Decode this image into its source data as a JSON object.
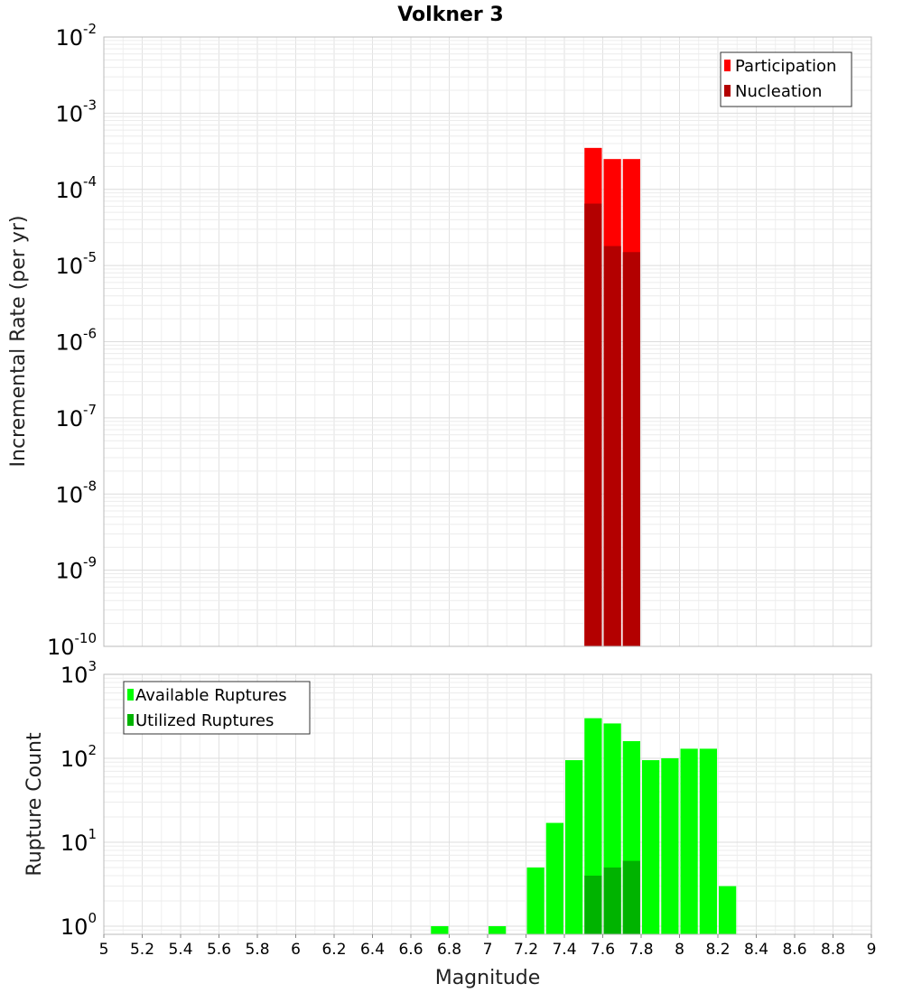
{
  "chart_data": [
    {
      "type": "bar",
      "title": "Volkner 3",
      "ylabel": "Incremental Rate (per yr)",
      "xlabel": "",
      "yscale": "log",
      "ylim": [
        1e-10,
        0.01
      ],
      "xlim": [
        5,
        9
      ],
      "bin_width": 0.1,
      "grid": true,
      "legend_position": "top-right",
      "y_tick_labels": [
        {
          "base": "10",
          "exp": "-2",
          "value": 0.01
        },
        {
          "base": "10",
          "exp": "-3",
          "value": 0.001
        },
        {
          "base": "10",
          "exp": "-4",
          "value": 0.0001
        },
        {
          "base": "10",
          "exp": "-5",
          "value": 1e-05
        },
        {
          "base": "10",
          "exp": "-6",
          "value": 1e-06
        },
        {
          "base": "10",
          "exp": "-7",
          "value": 1e-07
        },
        {
          "base": "10",
          "exp": "-8",
          "value": 1e-08
        },
        {
          "base": "10",
          "exp": "-9",
          "value": 1e-09
        },
        {
          "base": "10",
          "exp": "-10",
          "value": 1e-10
        }
      ],
      "series": [
        {
          "name": "Participation",
          "color": "#ff0000",
          "x": [
            7.55,
            7.65,
            7.75
          ],
          "values": [
            0.00035,
            0.00025,
            0.00025
          ]
        },
        {
          "name": "Nucleation",
          "color": "#b30000",
          "x": [
            7.55,
            7.65,
            7.75
          ],
          "values": [
            6.5e-05,
            1.8e-05,
            1.5e-05
          ]
        }
      ]
    },
    {
      "type": "bar",
      "title": "",
      "ylabel": "Rupture Count",
      "xlabel": "Magnitude",
      "yscale": "log",
      "ylim": [
        0.8,
        1000
      ],
      "xlim": [
        5,
        9
      ],
      "bin_width": 0.1,
      "grid": true,
      "legend_position": "top-left",
      "y_tick_labels": [
        {
          "base": "10",
          "exp": "3",
          "value": 1000
        },
        {
          "base": "10",
          "exp": "2",
          "value": 100
        },
        {
          "base": "10",
          "exp": "1",
          "value": 10
        },
        {
          "base": "10",
          "exp": "0",
          "value": 1
        }
      ],
      "x_tick_labels": [
        "5",
        "5.2",
        "5.4",
        "5.6",
        "5.8",
        "6",
        "6.2",
        "6.4",
        "6.6",
        "6.8",
        "7",
        "7.2",
        "7.4",
        "7.6",
        "7.8",
        "8",
        "8.2",
        "8.4",
        "8.6",
        "8.8",
        "9"
      ],
      "series": [
        {
          "name": "Available Ruptures",
          "color": "#00ff00",
          "x": [
            6.75,
            7.05,
            7.25,
            7.35,
            7.45,
            7.55,
            7.65,
            7.75,
            7.85,
            7.95,
            8.05,
            8.15,
            8.25
          ],
          "values": [
            1,
            1,
            5,
            17,
            95,
            300,
            260,
            160,
            95,
            100,
            130,
            130,
            3
          ]
        },
        {
          "name": "Utilized Ruptures",
          "color": "#00b300",
          "x": [
            7.55,
            7.65,
            7.75
          ],
          "values": [
            4,
            5,
            6
          ]
        }
      ]
    }
  ]
}
